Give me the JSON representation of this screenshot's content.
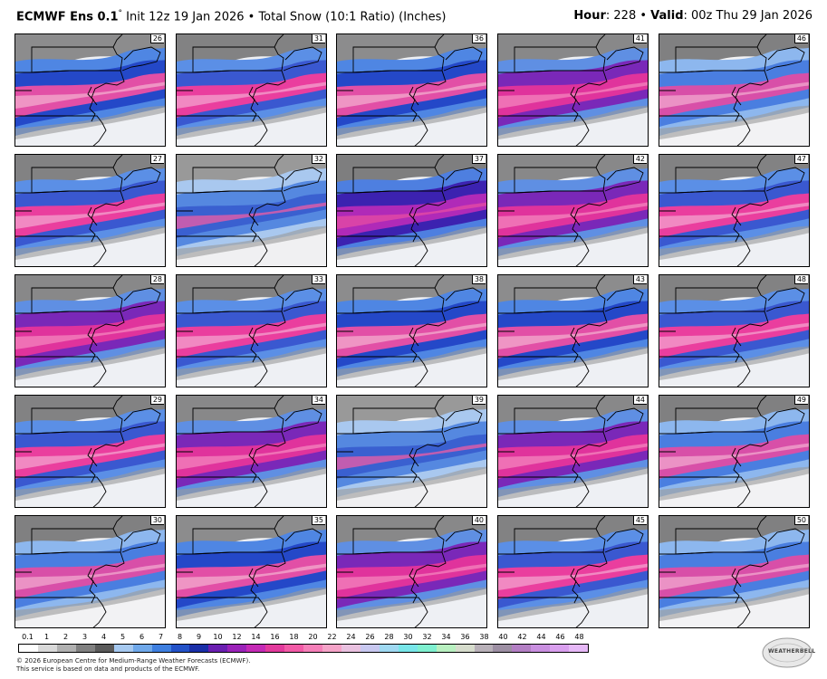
{
  "header": {
    "brand": "ECMWF Ens 0.1",
    "deg_symbol": "°",
    "init_text": " Init 12z 19 Jan 2026 • Total Snow (10:1 Ratio) (Inches)",
    "hour_label": "Hour",
    "hour_value": ": 228 • ",
    "valid_label": "Valid",
    "valid_value": ": 00z Thu 29 Jan 2026"
  },
  "panels": [
    {
      "label": "26",
      "style": "blue"
    },
    {
      "label": "31",
      "style": "pink"
    },
    {
      "label": "36",
      "style": "blue"
    },
    {
      "label": "41",
      "style": "magenta"
    },
    {
      "label": "46",
      "style": "light"
    },
    {
      "label": "27",
      "style": "pink"
    },
    {
      "label": "32",
      "style": "grey"
    },
    {
      "label": "37",
      "style": "purple"
    },
    {
      "label": "42",
      "style": "magenta"
    },
    {
      "label": "47",
      "style": "pink"
    },
    {
      "label": "28",
      "style": "magenta"
    },
    {
      "label": "33",
      "style": "pink"
    },
    {
      "label": "38",
      "style": "blue"
    },
    {
      "label": "43",
      "style": "blue"
    },
    {
      "label": "48",
      "style": "pink"
    },
    {
      "label": "29",
      "style": "pink"
    },
    {
      "label": "34",
      "style": "magenta"
    },
    {
      "label": "39",
      "style": "grey"
    },
    {
      "label": "44",
      "style": "magenta"
    },
    {
      "label": "49",
      "style": "light"
    },
    {
      "label": "30",
      "style": "light"
    },
    {
      "label": "35",
      "style": "blue"
    },
    {
      "label": "40",
      "style": "magenta"
    },
    {
      "label": "45",
      "style": "pink"
    },
    {
      "label": "50",
      "style": "light"
    }
  ],
  "legend": {
    "ticks": [
      "0.1",
      "1",
      "2",
      "3",
      "4",
      "5",
      "6",
      "7",
      "8",
      "9",
      "10",
      "12",
      "14",
      "16",
      "18",
      "20",
      "22",
      "24",
      "26",
      "28",
      "30",
      "32",
      "34",
      "36",
      "38",
      "40",
      "42",
      "44",
      "46",
      "48"
    ],
    "colors": [
      "#ffffff",
      "#d9d9d9",
      "#b0b0b0",
      "#808080",
      "#5a5a5a",
      "#a6c9f0",
      "#6fa8ea",
      "#3e7fe0",
      "#2352c8",
      "#1a2fa8",
      "#6a1fb0",
      "#9a22b8",
      "#c42ab5",
      "#e23a9c",
      "#f25aa6",
      "#f57fb8",
      "#f5a3c8",
      "#e9c1e0",
      "#c8c8f0",
      "#9fd9f2",
      "#78e6e9",
      "#7ff0d0",
      "#b8f0c0",
      "#d6dccc",
      "#b8b0b8",
      "#9d8fa3",
      "#b37fc4",
      "#c98fe0",
      "#d99fee",
      "#e6b8f7"
    ]
  },
  "footer": {
    "line1": "© 2026 European Centre for Medium-Range Weather Forecasts (ECMWF).",
    "line2": "This service is based on data and products of the ECMWF."
  },
  "logo": {
    "text": "WEATHERBELL",
    "icon": "weatherbell-logo-icon"
  }
}
